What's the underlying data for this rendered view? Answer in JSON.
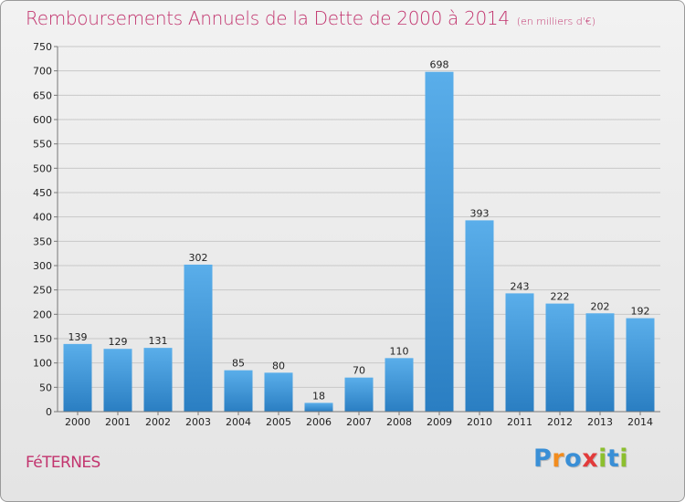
{
  "header": {
    "title": "Remboursements Annuels de la Dette de 2000 à 2014",
    "subtitle": "(en milliers d'€)"
  },
  "footer": {
    "town": "FéTERNES",
    "logo_letters": [
      "P",
      "r",
      "o",
      "x",
      "i",
      "t",
      "i"
    ],
    "logo_colors": [
      "#3a8fd6",
      "#f28c1e",
      "#3a8fd6",
      "#e23b3b",
      "#8cbf2e",
      "#3a8fd6",
      "#8cbf2e"
    ]
  },
  "colors": {
    "accent": "#c2346e",
    "bar_top": "#5aaeea",
    "bar_bottom": "#2a7ec2",
    "grid": "#c8c8c8",
    "axis_text": "#222222"
  },
  "chart_data": {
    "type": "bar",
    "categories": [
      "2000",
      "2001",
      "2002",
      "2003",
      "2004",
      "2005",
      "2006",
      "2007",
      "2008",
      "2009",
      "2010",
      "2011",
      "2012",
      "2013",
      "2014"
    ],
    "values": [
      139,
      129,
      131,
      302,
      85,
      80,
      18,
      70,
      110,
      698,
      393,
      243,
      222,
      202,
      192
    ],
    "ylim": [
      0,
      750
    ],
    "yticks": [
      0,
      50,
      100,
      150,
      200,
      250,
      300,
      350,
      400,
      450,
      500,
      550,
      600,
      650,
      700,
      750
    ],
    "grid": true,
    "data_labels": true
  }
}
